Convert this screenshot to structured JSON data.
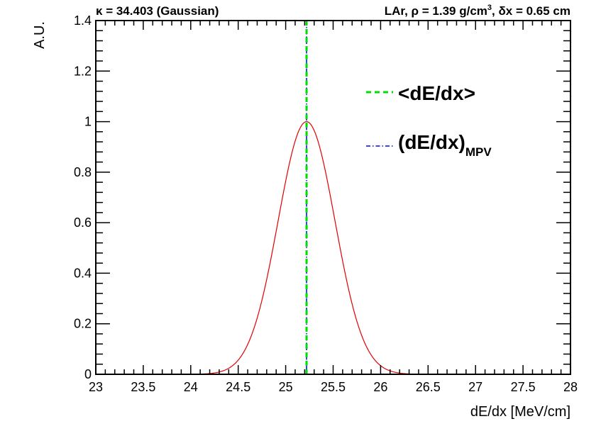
{
  "chart_data": {
    "type": "line",
    "title_left": "κ = 34.403 (Gaussian)",
    "title_right": {
      "prefix": "LAr, ρ = 1.39 g/cm",
      "sup": "3",
      "suffix": ", δx = 0.65 cm"
    },
    "xlabel": "dE/dx [MeV/cm]",
    "ylabel": "A.U.",
    "xlim": [
      23,
      28
    ],
    "ylim": [
      0,
      1.4
    ],
    "x_ticks": [
      23,
      23.5,
      24,
      24.5,
      25,
      25.5,
      26,
      26.5,
      27,
      27.5,
      28
    ],
    "x_tick_labels": [
      "23",
      "23.5",
      "24",
      "24.5",
      "25",
      "25.5",
      "26",
      "26.5",
      "27",
      "27.5",
      "28"
    ],
    "y_ticks": [
      0,
      0.2,
      0.4,
      0.6,
      0.8,
      1,
      1.2,
      1.4
    ],
    "y_tick_labels": [
      "0",
      "0.2",
      "0.4",
      "0.6",
      "0.8",
      "1",
      "1.2",
      "1.4"
    ],
    "grid": false,
    "series": [
      {
        "kind": "gaussian",
        "color": "#e00000",
        "mean": 25.22,
        "sigma": 0.3,
        "amplitude": 1.0
      }
    ],
    "vlines": [
      {
        "x": 25.22,
        "color": "#00dd00",
        "style": "dashed"
      },
      {
        "x": 25.22,
        "color": "#0000ff",
        "style": "dash-dot"
      }
    ],
    "legend": {
      "position": "top-right",
      "entries": [
        {
          "label": "<dE/dx>",
          "color": "#00dd00",
          "style": "dashed"
        },
        {
          "label": "(dE/dx)",
          "sub": "MPV",
          "color": "#0000ff",
          "style": "dash-dot"
        }
      ]
    }
  }
}
